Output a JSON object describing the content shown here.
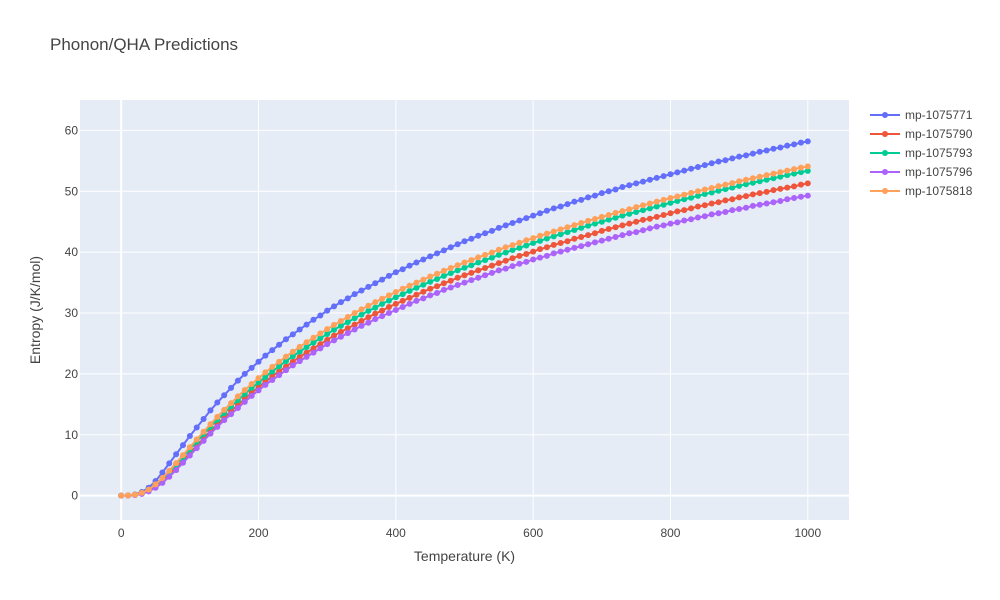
{
  "chart_data": {
    "type": "line",
    "title": "Phonon/QHA Predictions",
    "xlabel": "Temperature (K)",
    "ylabel": "Entropy (J/K/mol)",
    "xlim": [
      -60,
      1060
    ],
    "ylim": [
      -4,
      65
    ],
    "x_ticks": [
      0,
      200,
      400,
      600,
      800,
      1000
    ],
    "y_ticks": [
      0,
      10,
      20,
      30,
      40,
      50,
      60
    ],
    "grid": true,
    "legend_position": "right",
    "x": [
      0,
      10,
      20,
      30,
      40,
      50,
      60,
      70,
      80,
      90,
      100,
      110,
      120,
      130,
      140,
      150,
      160,
      170,
      180,
      190,
      200,
      210,
      220,
      230,
      240,
      250,
      260,
      270,
      280,
      290,
      300,
      310,
      320,
      330,
      340,
      350,
      360,
      370,
      380,
      390,
      400,
      410,
      420,
      430,
      440,
      450,
      460,
      470,
      480,
      490,
      500,
      510,
      520,
      530,
      540,
      550,
      560,
      570,
      580,
      590,
      600,
      610,
      620,
      630,
      640,
      650,
      660,
      670,
      680,
      690,
      700,
      710,
      720,
      730,
      740,
      750,
      760,
      770,
      780,
      790,
      800,
      810,
      820,
      830,
      840,
      850,
      860,
      870,
      880,
      890,
      900,
      910,
      920,
      930,
      940,
      950,
      960,
      970,
      980,
      990,
      1000
    ],
    "series": [
      {
        "name": "mp-1075771",
        "color": "#636efa",
        "values": [
          0.0,
          0.05,
          0.2,
          0.6,
          1.3,
          2.4,
          3.8,
          5.3,
          6.8,
          8.3,
          9.8,
          11.2,
          12.6,
          14.0,
          15.3,
          16.5,
          17.7,
          18.9,
          20.0,
          21.0,
          22.0,
          23.0,
          23.9,
          24.8,
          25.7,
          26.5,
          27.3,
          28.1,
          28.9,
          29.6,
          30.4,
          31.1,
          31.8,
          32.4,
          33.1,
          33.7,
          34.3,
          34.9,
          35.5,
          36.1,
          36.7,
          37.2,
          37.8,
          38.3,
          38.8,
          39.3,
          39.8,
          40.3,
          40.8,
          41.3,
          41.8,
          42.2,
          42.7,
          43.1,
          43.5,
          44.0,
          44.4,
          44.8,
          45.2,
          45.6,
          46.0,
          46.4,
          46.8,
          47.2,
          47.5,
          47.9,
          48.3,
          48.6,
          49.0,
          49.3,
          49.7,
          50.0,
          50.3,
          50.7,
          51.0,
          51.3,
          51.6,
          51.9,
          52.2,
          52.5,
          52.8,
          53.1,
          53.4,
          53.7,
          54.0,
          54.3,
          54.6,
          54.9,
          55.1,
          55.4,
          55.7,
          55.9,
          56.2,
          56.5,
          56.7,
          57.0,
          57.2,
          57.5,
          57.7,
          58.0,
          58.2
        ]
      },
      {
        "name": "mp-1075790",
        "color": "#ef553b",
        "values": [
          0.0,
          0.03,
          0.12,
          0.35,
          0.8,
          1.5,
          2.4,
          3.5,
          4.6,
          5.8,
          7.0,
          8.2,
          9.4,
          10.6,
          11.7,
          12.8,
          13.9,
          14.9,
          15.9,
          16.9,
          17.8,
          18.7,
          19.6,
          20.4,
          21.2,
          22.0,
          22.8,
          23.5,
          24.2,
          24.9,
          25.6,
          26.3,
          26.9,
          27.5,
          28.1,
          28.7,
          29.3,
          29.9,
          30.4,
          31.0,
          31.5,
          32.0,
          32.5,
          33.0,
          33.5,
          34.0,
          34.4,
          34.9,
          35.3,
          35.8,
          36.2,
          36.6,
          37.0,
          37.4,
          37.8,
          38.2,
          38.6,
          39.0,
          39.4,
          39.7,
          40.1,
          40.5,
          40.8,
          41.2,
          41.5,
          41.8,
          42.2,
          42.5,
          42.8,
          43.1,
          43.5,
          43.8,
          44.1,
          44.4,
          44.7,
          45.0,
          45.3,
          45.5,
          45.8,
          46.1,
          46.4,
          46.7,
          46.9,
          47.2,
          47.5,
          47.7,
          48.0,
          48.2,
          48.5,
          48.7,
          49.0,
          49.2,
          49.5,
          49.7,
          49.9,
          50.2,
          50.4,
          50.6,
          50.8,
          51.1,
          51.3
        ]
      },
      {
        "name": "mp-1075793",
        "color": "#00cc96",
        "values": [
          0.0,
          0.04,
          0.15,
          0.42,
          0.95,
          1.75,
          2.75,
          3.9,
          5.1,
          6.35,
          7.6,
          8.85,
          10.1,
          11.3,
          12.45,
          13.55,
          14.65,
          15.7,
          16.7,
          17.7,
          18.6,
          19.5,
          20.4,
          21.25,
          22.1,
          22.9,
          23.65,
          24.4,
          25.15,
          25.85,
          26.55,
          27.25,
          27.9,
          28.5,
          29.15,
          29.75,
          30.35,
          30.9,
          31.5,
          32.05,
          32.6,
          33.1,
          33.65,
          34.15,
          34.65,
          35.15,
          35.6,
          36.1,
          36.55,
          37.0,
          37.45,
          37.85,
          38.3,
          38.7,
          39.1,
          39.55,
          39.95,
          40.35,
          40.7,
          41.1,
          41.5,
          41.85,
          42.25,
          42.6,
          42.95,
          43.3,
          43.65,
          44.0,
          44.35,
          44.7,
          45.0,
          45.35,
          45.65,
          46.0,
          46.3,
          46.6,
          46.9,
          47.2,
          47.5,
          47.8,
          48.1,
          48.4,
          48.7,
          48.95,
          49.25,
          49.55,
          49.8,
          50.1,
          50.35,
          50.6,
          50.9,
          51.15,
          51.4,
          51.65,
          51.9,
          52.15,
          52.4,
          52.65,
          52.9,
          53.15,
          53.35
        ]
      },
      {
        "name": "mp-1075796",
        "color": "#ab63fa",
        "values": [
          0.0,
          0.03,
          0.1,
          0.3,
          0.7,
          1.3,
          2.1,
          3.1,
          4.2,
          5.4,
          6.6,
          7.8,
          9.0,
          10.2,
          11.3,
          12.4,
          13.4,
          14.4,
          15.4,
          16.4,
          17.3,
          18.2,
          19.0,
          19.8,
          20.6,
          21.4,
          22.1,
          22.8,
          23.5,
          24.2,
          24.9,
          25.5,
          26.1,
          26.7,
          27.3,
          27.9,
          28.4,
          29.0,
          29.5,
          30.0,
          30.5,
          31.0,
          31.5,
          32.0,
          32.4,
          32.9,
          33.3,
          33.8,
          34.2,
          34.6,
          35.0,
          35.4,
          35.8,
          36.2,
          36.6,
          37.0,
          37.3,
          37.7,
          38.1,
          38.4,
          38.8,
          39.1,
          39.4,
          39.8,
          40.1,
          40.4,
          40.7,
          41.0,
          41.3,
          41.6,
          41.9,
          42.2,
          42.5,
          42.8,
          43.1,
          43.3,
          43.6,
          43.9,
          44.2,
          44.4,
          44.7,
          44.9,
          45.2,
          45.4,
          45.7,
          45.9,
          46.2,
          46.4,
          46.6,
          46.9,
          47.1,
          47.3,
          47.6,
          47.8,
          48.0,
          48.2,
          48.4,
          48.7,
          48.9,
          49.1,
          49.3
        ]
      },
      {
        "name": "mp-1075818",
        "color": "#ffa15a",
        "values": [
          0.0,
          0.04,
          0.16,
          0.45,
          1.0,
          1.85,
          2.9,
          4.1,
          5.35,
          6.65,
          7.95,
          9.25,
          10.5,
          11.75,
          12.95,
          14.1,
          15.2,
          16.3,
          17.35,
          18.35,
          19.3,
          20.25,
          21.15,
          22.0,
          22.85,
          23.65,
          24.45,
          25.2,
          25.95,
          26.65,
          27.35,
          28.05,
          28.7,
          29.35,
          30.0,
          30.6,
          31.2,
          31.8,
          32.35,
          32.9,
          33.45,
          34.0,
          34.5,
          35.0,
          35.5,
          36.0,
          36.45,
          36.95,
          37.4,
          37.85,
          38.3,
          38.7,
          39.15,
          39.55,
          39.95,
          40.4,
          40.8,
          41.15,
          41.55,
          41.95,
          42.3,
          42.7,
          43.05,
          43.4,
          43.75,
          44.1,
          44.45,
          44.8,
          45.15,
          45.45,
          45.8,
          46.1,
          46.45,
          46.75,
          47.05,
          47.4,
          47.7,
          48.0,
          48.3,
          48.6,
          48.9,
          49.15,
          49.45,
          49.75,
          50.0,
          50.3,
          50.55,
          50.85,
          51.1,
          51.35,
          51.65,
          51.9,
          52.15,
          52.4,
          52.65,
          52.9,
          53.15,
          53.4,
          53.65,
          53.9,
          54.1
        ]
      }
    ]
  }
}
